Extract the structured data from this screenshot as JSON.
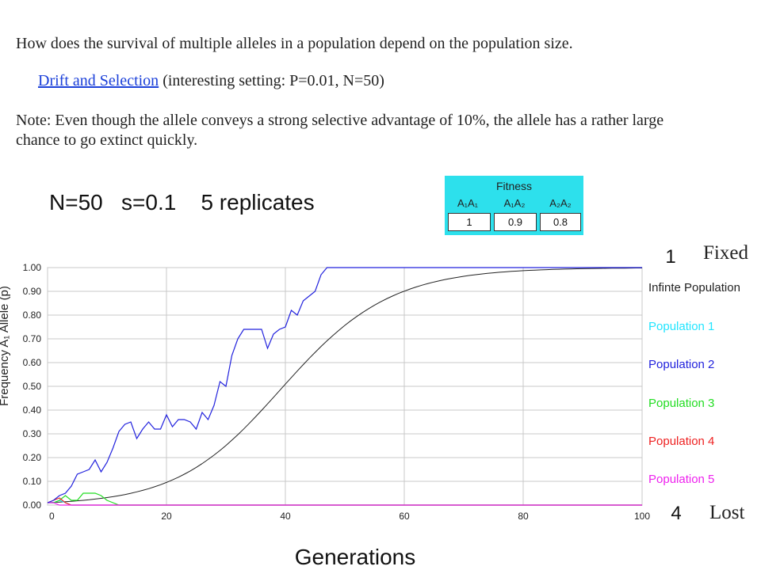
{
  "question": "How does the survival of multiple alleles in a population depend on the population size.",
  "link": {
    "label": "Drift and Selection",
    "suffix": " (interesting setting: P=0.01, N=50)"
  },
  "note": "Note: Even though the allele conveys a strong selective advantage of 10%, the allele has a rather large chance to go extinct quickly.",
  "params": "N=50   s=0.1    5 replicates",
  "fitness": {
    "title": "Fitness",
    "headers": [
      "A₁A₁",
      "A₁A₂",
      "A₂A₂"
    ],
    "values": [
      "1",
      "0.9",
      "0.8"
    ]
  },
  "annotations": {
    "fixed_count": "1",
    "fixed_label": "Fixed",
    "lost_count": "4",
    "lost_label": "Lost"
  },
  "chart_data": {
    "type": "line",
    "ylabel": "Frequency A₁ Allele (p)",
    "xlabel": "Generations",
    "xlim": [
      0,
      100
    ],
    "ylim": [
      0,
      1
    ],
    "xticks": [
      "0",
      "20",
      "40",
      "60",
      "80",
      "100"
    ],
    "yticks": [
      "0.00",
      "0.10",
      "0.20",
      "0.30",
      "0.40",
      "0.50",
      "0.60",
      "0.70",
      "0.80",
      "0.90",
      "1.00"
    ],
    "grid": true,
    "legend_position": "right",
    "series": [
      {
        "name": "Infinte Population",
        "color": "#222222",
        "x": [],
        "y": []
      },
      {
        "name": "Population 1",
        "color": "#22e5ff",
        "x": [
          0,
          1,
          2,
          3,
          4,
          100
        ],
        "y": [
          0.01,
          0.01,
          0.02,
          0.01,
          0,
          0
        ]
      },
      {
        "name": "Population 2",
        "color": "#2222dd",
        "x": [
          0,
          1,
          2,
          3,
          4,
          5,
          6,
          7,
          8,
          9,
          10,
          11,
          12,
          13,
          14,
          15,
          16,
          17,
          18,
          19,
          20,
          21,
          22,
          23,
          24,
          25,
          26,
          27,
          28,
          29,
          30,
          31,
          32,
          33,
          34,
          35,
          36,
          37,
          38,
          39,
          40,
          41,
          42,
          43,
          44,
          45,
          46,
          47,
          48,
          100
        ],
        "y": [
          0.01,
          0.02,
          0.04,
          0.05,
          0.08,
          0.13,
          0.14,
          0.15,
          0.19,
          0.14,
          0.18,
          0.24,
          0.31,
          0.34,
          0.35,
          0.28,
          0.32,
          0.35,
          0.32,
          0.32,
          0.38,
          0.33,
          0.36,
          0.36,
          0.35,
          0.32,
          0.39,
          0.36,
          0.42,
          0.52,
          0.5,
          0.63,
          0.7,
          0.74,
          0.74,
          0.74,
          0.74,
          0.66,
          0.72,
          0.74,
          0.75,
          0.82,
          0.8,
          0.86,
          0.88,
          0.9,
          0.97,
          1.0,
          1.0,
          1.0
        ]
      },
      {
        "name": "Population 3",
        "color": "#22dd22",
        "x": [
          0,
          1,
          2,
          3,
          4,
          5,
          6,
          7,
          8,
          9,
          10,
          11,
          12,
          100
        ],
        "y": [
          0.01,
          0.01,
          0.02,
          0.04,
          0.02,
          0.02,
          0.05,
          0.05,
          0.05,
          0.04,
          0.02,
          0.01,
          0,
          0
        ]
      },
      {
        "name": "Population 4",
        "color": "#ee2222",
        "x": [
          0,
          1,
          2,
          3,
          4,
          100
        ],
        "y": [
          0.01,
          0.02,
          0.03,
          0.01,
          0,
          0
        ]
      },
      {
        "name": "Population 5",
        "color": "#ee22ee",
        "x": [
          0,
          1,
          2,
          3,
          100
        ],
        "y": [
          0.01,
          0.01,
          0,
          0,
          0
        ]
      }
    ]
  }
}
